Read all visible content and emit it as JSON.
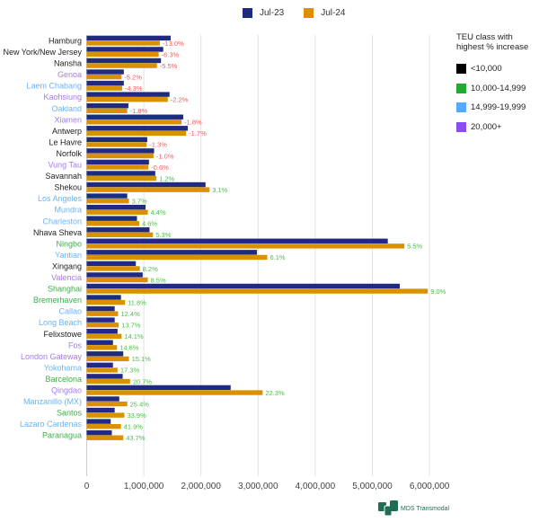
{
  "chart_data": {
    "type": "bar",
    "orientation": "horizontal",
    "title": "",
    "xlabel": "",
    "ylabel": "",
    "xlim": [
      0,
      6500000
    ],
    "xticks": [
      0,
      1000000,
      2000000,
      3000000,
      4000000,
      5000000,
      6000000
    ],
    "xtick_labels": [
      "0",
      "1,000,000",
      "2,000,000",
      "3,000,000",
      "4,000,000",
      "5,000,000",
      "6,000,000"
    ],
    "grid": "vertical",
    "legend_position": "top",
    "series": [
      {
        "name": "Jul-23",
        "color": "#1f2a80"
      },
      {
        "name": "Jul-24",
        "color": "#d99100"
      }
    ],
    "class_legend": {
      "title": "TEU class with highest % increase",
      "classes": [
        {
          "label": "<10,000",
          "color": "#000000",
          "text_color": "#222222"
        },
        {
          "label": "10,000-14,999",
          "color": "#22aa33",
          "text_color": "#3cae48"
        },
        {
          "label": "14,999-19,999",
          "color": "#55aaff",
          "text_color": "#6ab4f5"
        },
        {
          "label": "20,000+",
          "color": "#8a4cf5",
          "text_color": "#a57af0"
        }
      ]
    },
    "positive_color": "#4cbf4c",
    "negative_color": "#ff5555",
    "rows": [
      {
        "port": "Hamburg",
        "class": 0,
        "jul23": 1470000,
        "jul24": 1280000,
        "change": "-13.0%"
      },
      {
        "port": "New York/New Jersey",
        "class": 0,
        "jul23": 1340000,
        "jul24": 1260000,
        "change": "-6.3%"
      },
      {
        "port": "Nansha",
        "class": 0,
        "jul23": 1300000,
        "jul24": 1230000,
        "change": "-5.5%"
      },
      {
        "port": "Genoa",
        "class": 3,
        "jul23": 650000,
        "jul24": 610000,
        "change": "-5.2%"
      },
      {
        "port": "Laem Chabang",
        "class": 2,
        "jul23": 650000,
        "jul24": 620000,
        "change": "-4.3%"
      },
      {
        "port": "Kaohsiung",
        "class": 3,
        "jul23": 1450000,
        "jul24": 1420000,
        "change": "-2.2%"
      },
      {
        "port": "Oakland",
        "class": 2,
        "jul23": 730000,
        "jul24": 710000,
        "change": "-1.8%"
      },
      {
        "port": "Xiamen",
        "class": 3,
        "jul23": 1690000,
        "jul24": 1660000,
        "change": "-1.8%"
      },
      {
        "port": "Antwerp",
        "class": 0,
        "jul23": 1770000,
        "jul24": 1740000,
        "change": "-1.7%"
      },
      {
        "port": "Le Havre",
        "class": 0,
        "jul23": 1060000,
        "jul24": 1050000,
        "change": "-1.3%"
      },
      {
        "port": "Norfolk",
        "class": 0,
        "jul23": 1180000,
        "jul24": 1170000,
        "change": "-1.0%"
      },
      {
        "port": "Vung Tau",
        "class": 3,
        "jul23": 1090000,
        "jul24": 1080000,
        "change": "-0.6%"
      },
      {
        "port": "Savannah",
        "class": 0,
        "jul23": 1200000,
        "jul24": 1220000,
        "change": "1.2%"
      },
      {
        "port": "Shekou",
        "class": 0,
        "jul23": 2080000,
        "jul24": 2150000,
        "change": "3.1%"
      },
      {
        "port": "Los Angeles",
        "class": 2,
        "jul23": 710000,
        "jul24": 740000,
        "change": "3.7%"
      },
      {
        "port": "Mundra",
        "class": 2,
        "jul23": 1030000,
        "jul24": 1070000,
        "change": "4.4%"
      },
      {
        "port": "Charleston",
        "class": 2,
        "jul23": 880000,
        "jul24": 920000,
        "change": "4.6%"
      },
      {
        "port": "Nhava Sheva",
        "class": 0,
        "jul23": 1100000,
        "jul24": 1160000,
        "change": "5.3%"
      },
      {
        "port": "Ningbo",
        "class": 1,
        "jul23": 5270000,
        "jul24": 5560000,
        "change": "5.5%"
      },
      {
        "port": "Yantian",
        "class": 2,
        "jul23": 2980000,
        "jul24": 3160000,
        "change": "6.1%"
      },
      {
        "port": "Xingang",
        "class": 0,
        "jul23": 860000,
        "jul24": 930000,
        "change": "8.2%"
      },
      {
        "port": "Valencia",
        "class": 3,
        "jul23": 980000,
        "jul24": 1070000,
        "change": "8.5%"
      },
      {
        "port": "Shanghai",
        "class": 1,
        "jul23": 5480000,
        "jul24": 5970000,
        "change": "9.0%"
      },
      {
        "port": "Bremerhaven",
        "class": 1,
        "jul23": 600000,
        "jul24": 670000,
        "change": "11.8%"
      },
      {
        "port": "Callao",
        "class": 2,
        "jul23": 490000,
        "jul24": 550000,
        "change": "12.4%"
      },
      {
        "port": "Long Beach",
        "class": 2,
        "jul23": 490000,
        "jul24": 560000,
        "change": "13.7%"
      },
      {
        "port": "Felixstowe",
        "class": 0,
        "jul23": 540000,
        "jul24": 610000,
        "change": "14.1%"
      },
      {
        "port": "Fos",
        "class": 3,
        "jul23": 460000,
        "jul24": 530000,
        "change": "14.6%"
      },
      {
        "port": "London Gateway",
        "class": 3,
        "jul23": 640000,
        "jul24": 740000,
        "change": "15.1%"
      },
      {
        "port": "Yokohama",
        "class": 2,
        "jul23": 460000,
        "jul24": 540000,
        "change": "17.3%"
      },
      {
        "port": "Barcelona",
        "class": 1,
        "jul23": 630000,
        "jul24": 760000,
        "change": "20.7%"
      },
      {
        "port": "Qingdao",
        "class": 3,
        "jul23": 2520000,
        "jul24": 3080000,
        "change": "22.3%"
      },
      {
        "port": "Manzanillo (MX)",
        "class": 2,
        "jul23": 570000,
        "jul24": 710000,
        "change": "25.4%"
      },
      {
        "port": "Santos",
        "class": 1,
        "jul23": 490000,
        "jul24": 660000,
        "change": "33.9%"
      },
      {
        "port": "Lazaro Cardenas",
        "class": 2,
        "jul23": 420000,
        "jul24": 600000,
        "change": "41.9%"
      },
      {
        "port": "Paranagua",
        "class": 1,
        "jul23": 440000,
        "jul24": 640000,
        "change": "43.7%"
      }
    ]
  },
  "logo_text": "MDS Transmodal"
}
